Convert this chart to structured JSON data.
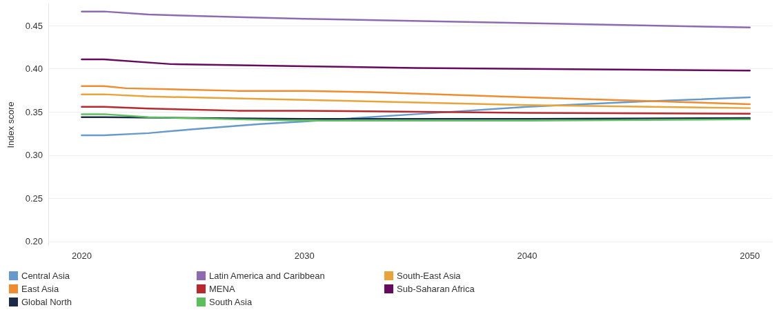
{
  "chart_data": {
    "type": "line",
    "ylabel": "Index score",
    "xlim": [
      2018.5,
      2051
    ],
    "xticks": [
      2020,
      2030,
      2040,
      2050
    ],
    "ylim": [
      0.195,
      0.475
    ],
    "yticks": [
      {
        "value": 0.2,
        "label": "0.20"
      },
      {
        "value": 0.25,
        "label": "0.25"
      },
      {
        "value": 0.3,
        "label": "0.30"
      },
      {
        "value": 0.35,
        "label": "0.35"
      },
      {
        "value": 0.4,
        "label": "0.40"
      },
      {
        "value": 0.45,
        "label": "0.45"
      }
    ],
    "grid": "y",
    "legend": "bottom left",
    "marker": "none",
    "line_style": "solid",
    "series": [
      {
        "name": "Central Asia",
        "color": "#6699cc",
        "x": [
          2020,
          2021,
          2023,
          2025,
          2028,
          2030,
          2035,
          2040,
          2045,
          2050
        ],
        "values": [
          0.323,
          0.323,
          0.3255,
          0.33,
          0.336,
          0.339,
          0.3475,
          0.356,
          0.362,
          0.367
        ]
      },
      {
        "name": "Latin America and Caribbean",
        "color": "#8e6bb0",
        "x": [
          2020,
          2021,
          2023,
          2027,
          2030,
          2040,
          2050
        ],
        "values": [
          0.4665,
          0.4665,
          0.463,
          0.46,
          0.458,
          0.453,
          0.448
        ]
      },
      {
        "name": "South-East Asia",
        "color": "#e8a33a",
        "x": [
          2020,
          2021,
          2023,
          2030,
          2040,
          2050
        ],
        "values": [
          0.3705,
          0.3705,
          0.368,
          0.364,
          0.358,
          0.3545
        ]
      },
      {
        "name": "East Asia",
        "color": "#f08c30",
        "x": [
          2020,
          2021,
          2022,
          2027,
          2030,
          2033,
          2040,
          2050
        ],
        "values": [
          0.38,
          0.38,
          0.3775,
          0.3745,
          0.3745,
          0.373,
          0.367,
          0.359
        ]
      },
      {
        "name": "MENA",
        "color": "#b8282c",
        "x": [
          2020,
          2021,
          2023,
          2027,
          2030,
          2040,
          2050
        ],
        "values": [
          0.356,
          0.356,
          0.354,
          0.3515,
          0.3515,
          0.349,
          0.348
        ]
      },
      {
        "name": "Sub-Saharan Africa",
        "color": "#650a5c",
        "x": [
          2020,
          2021,
          2024,
          2030,
          2035,
          2040,
          2050
        ],
        "values": [
          0.411,
          0.411,
          0.4055,
          0.403,
          0.401,
          0.4,
          0.398
        ]
      },
      {
        "name": "Global North",
        "color": "#1c2a4a",
        "x": [
          2020,
          2021,
          2030,
          2040,
          2050
        ],
        "values": [
          0.344,
          0.344,
          0.342,
          0.342,
          0.343
        ]
      },
      {
        "name": "South Asia",
        "color": "#5bbf5b",
        "x": [
          2020,
          2021,
          2023,
          2027,
          2030,
          2040,
          2050
        ],
        "values": [
          0.3475,
          0.3475,
          0.344,
          0.3415,
          0.34,
          0.34,
          0.3415
        ]
      }
    ]
  }
}
